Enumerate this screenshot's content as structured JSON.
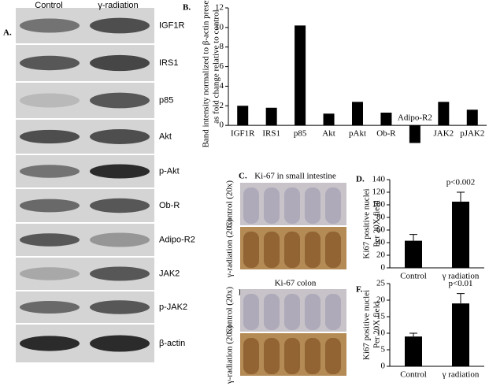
{
  "panel_labels": {
    "A": "A.",
    "B": "B.",
    "C": "C.",
    "D": "D.",
    "E": "E.",
    "F": "F."
  },
  "blot": {
    "header": [
      "Control",
      "γ-radiation"
    ],
    "labels": [
      "IGF1R",
      "IRS1",
      "p85",
      "Akt",
      "p-Akt",
      "Ob-R",
      "Adipo-R2",
      "JAK2",
      "p-JAK2",
      "β-actin"
    ]
  },
  "micrographs": {
    "C_title": "Ki-67 in small intestine",
    "E_title": "Ki-67 colon",
    "C_rows": [
      "Control (20x)",
      "γ-radiation (20x)"
    ],
    "E_rows": [
      "Control (20x)",
      "γ-radiation (20x)"
    ]
  },
  "chart_data": [
    {
      "type": "bar",
      "y_label": [
        "Band intensity normalized to β-actin presented",
        "as fold change relative to control"
      ],
      "categories": [
        "IGF1R",
        "IRS1",
        "p85",
        "Akt",
        "pAkt",
        "Ob-R",
        "Adipo-R2",
        "JAK2",
        "pJAK2"
      ],
      "values": [
        2.0,
        1.8,
        10.2,
        1.2,
        2.4,
        1.3,
        -1.8,
        2.4,
        1.6
      ],
      "color": "#000000",
      "ylim": [
        -2,
        12
      ],
      "yticks": [
        0,
        2,
        4,
        6,
        8,
        10,
        12
      ]
    },
    {
      "type": "bar",
      "y_label": [
        "Ki67 positive nuclei",
        "Per 20X field"
      ],
      "categories": [
        "Control",
        "γ radiation"
      ],
      "values": [
        43,
        105
      ],
      "errors": [
        10,
        15
      ],
      "color": "#000000",
      "annotation": "p<0.002",
      "ylim": [
        0,
        140
      ],
      "yticks": [
        0,
        20,
        40,
        60,
        80,
        100,
        120,
        140
      ]
    },
    {
      "type": "bar",
      "y_label": [
        "Ki67 positive nuclei",
        "Per 20X field"
      ],
      "categories": [
        "Control",
        "γ radiation"
      ],
      "values": [
        9,
        19
      ],
      "errors": [
        1,
        3
      ],
      "color": "#000000",
      "annotation": "p<0.01",
      "ylim": [
        0,
        25
      ],
      "yticks": [
        0,
        5,
        10,
        15,
        20,
        25
      ]
    }
  ]
}
